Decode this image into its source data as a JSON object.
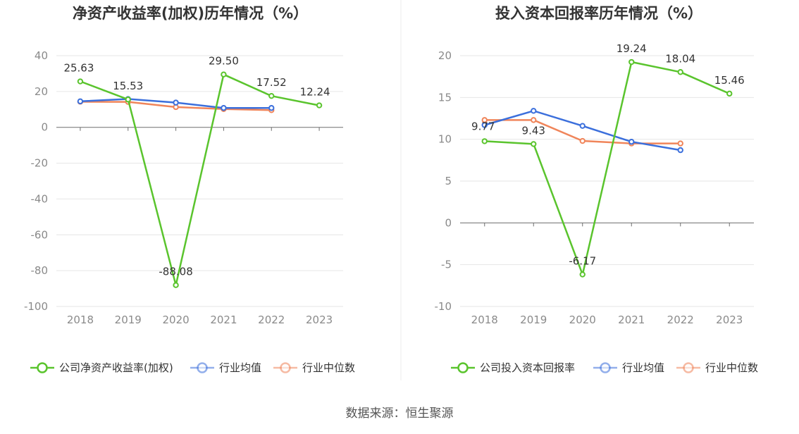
{
  "source": "数据来源：恒生聚源",
  "colors": {
    "company": "#5ac42d",
    "avg": "#3b6fdc",
    "median": "#f0855a",
    "grid": "#e6e6e6",
    "axis": "#6e6e6e"
  },
  "chart_data": [
    {
      "type": "line",
      "title": "净资产收益率(加权)历年情况（%）",
      "categories": [
        "2018",
        "2019",
        "2020",
        "2021",
        "2022",
        "2023"
      ],
      "yticks": [
        "40",
        "20",
        "0",
        "-20",
        "-40",
        "-60",
        "-80",
        "-100"
      ],
      "ylim": [
        -100,
        40
      ],
      "series": [
        {
          "name": "公司净资产收益率(加权)",
          "values": [
            25.63,
            15.53,
            -88.08,
            29.5,
            17.52,
            12.24
          ],
          "labels": [
            "25.63",
            "15.53",
            "-88.08",
            "29.50",
            "17.52",
            "12.24"
          ]
        },
        {
          "name": "行业均值",
          "values": [
            14.5,
            15.8,
            13.8,
            10.8,
            10.8,
            null
          ]
        },
        {
          "name": "行业中位数",
          "values": [
            14.3,
            14.2,
            11.3,
            10.2,
            9.6,
            null
          ]
        }
      ]
    },
    {
      "type": "line",
      "title": "投入资本回报率历年情况（%）",
      "categories": [
        "2018",
        "2019",
        "2020",
        "2021",
        "2022",
        "2023"
      ],
      "yticks": [
        "20",
        "15",
        "10",
        "5",
        "0",
        "-5",
        "-10"
      ],
      "ylim": [
        -10,
        20
      ],
      "series": [
        {
          "name": "公司投入资本回报率",
          "values": [
            9.77,
            9.43,
            -6.17,
            19.24,
            18.04,
            15.46
          ],
          "labels": [
            "9.77",
            "9.43",
            "-6.17",
            "19.24",
            "18.04",
            "15.46"
          ]
        },
        {
          "name": "行业均值",
          "values": [
            11.7,
            13.4,
            11.6,
            9.7,
            8.7,
            null
          ]
        },
        {
          "name": "行业中位数",
          "values": [
            12.3,
            12.3,
            9.8,
            9.5,
            9.5,
            null
          ]
        }
      ]
    }
  ]
}
